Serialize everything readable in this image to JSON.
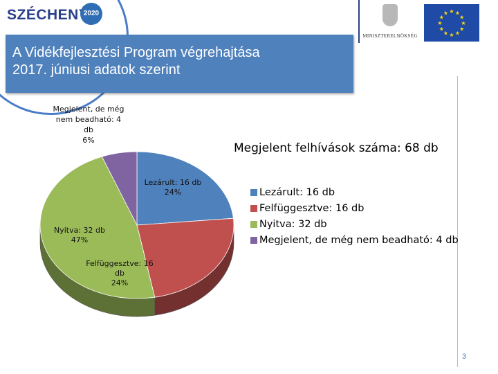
{
  "header": {
    "brand": "SZÉCHENYI",
    "brand_year": "2020",
    "ministry": "MINISZTERELNÖKSÉG",
    "title_line1": "A Vidékfejlesztési Program végrehajtása",
    "title_line2": "2017. júniusi adatok szerint"
  },
  "icons": {
    "eu_flag": "eu-flag-icon",
    "crest": "hungarian-crest-icon"
  },
  "chart_data": {
    "type": "pie",
    "title": "Megjelent felhívások száma: 68 db",
    "categories": [
      "Lezárult",
      "Felfüggesztve",
      "Nyitva",
      "Megjelent, de még nem beadható"
    ],
    "values": [
      16,
      16,
      32,
      4
    ],
    "colors": [
      "#4f81bd",
      "#c0504d",
      "#9bbb59",
      "#8064a2"
    ],
    "legend_placement": "right",
    "legend": [
      "Lezárult: 16 db",
      "Felfüggesztve: 16 db",
      "Nyitva: 32 db",
      "Megjelent, de még nem beadható: 4 db"
    ],
    "labels": [
      {
        "l1": "Lezárult: 16 db",
        "l2": "24%"
      },
      {
        "l1": "Felfüggesztve: 16",
        "l2": "db",
        "l3": "24%"
      },
      {
        "l1": "Nyitva: 32 db",
        "l2": "47%"
      },
      {
        "l1": "Megjelent, de még",
        "l2": "nem beadható: 4",
        "l3": "db",
        "l4": "6%"
      }
    ]
  },
  "page_number": "3"
}
